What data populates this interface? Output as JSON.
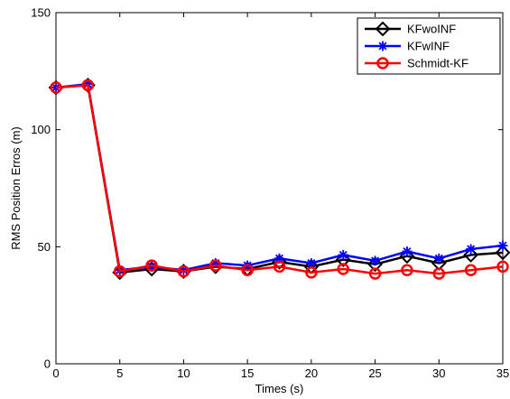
{
  "chart_data": {
    "type": "line",
    "xlabel": "Times (s)",
    "ylabel": "RMS Position Erros (m)",
    "xlim": [
      0,
      35
    ],
    "ylim": [
      0,
      150
    ],
    "x_ticks": [
      "0",
      "5",
      "10",
      "15",
      "20",
      "25",
      "30",
      "35"
    ],
    "y_ticks": [
      "0",
      "50",
      "100",
      "150"
    ],
    "grid": false,
    "legend_position": "top-right",
    "x": [
      0,
      2.5,
      5,
      7.5,
      10,
      12.5,
      15,
      17.5,
      20,
      22.5,
      25,
      27.5,
      30,
      32.5,
      35
    ],
    "series": [
      {
        "name": "KFwoINF",
        "color": "#000000",
        "marker": "diamond",
        "values": [
          118,
          119,
          39,
          40.5,
          39.5,
          41.5,
          40.5,
          43.5,
          41.5,
          44.5,
          42.5,
          46,
          43,
          46.5,
          47.5
        ]
      },
      {
        "name": "KFwINF",
        "color": "#0000ff",
        "marker": "asterisk",
        "values": [
          118,
          119.5,
          40,
          41.5,
          40,
          43,
          42,
          45,
          43,
          46.5,
          44,
          48,
          45,
          49,
          50.5
        ]
      },
      {
        "name": "Schmidt-KF",
        "color": "#ff0000",
        "marker": "circle",
        "values": [
          118,
          119,
          39.5,
          42,
          39.5,
          42,
          40,
          41.5,
          39,
          40.5,
          38.5,
          40,
          38.5,
          40,
          41.5
        ]
      }
    ]
  }
}
